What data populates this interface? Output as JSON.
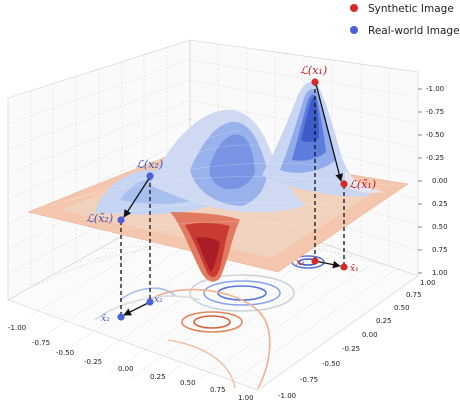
{
  "legend": {
    "items": [
      {
        "label": "Synthetic Image",
        "color": "#d42a2a"
      },
      {
        "label": "Real-world Image",
        "color": "#4a62d8"
      }
    ]
  },
  "chart_data": {
    "type": "surface3d",
    "z_axis_inverted": true,
    "xlim": [
      -1.0,
      1.0
    ],
    "ylim": [
      -1.0,
      1.0
    ],
    "zlim": [
      -1.0,
      1.0
    ],
    "x_ticks": [
      "-1.00",
      "-0.75",
      "-0.50",
      "-0.25",
      "0.00",
      "0.25",
      "0.50",
      "0.75",
      "1.00"
    ],
    "y_ticks": [
      "-1.00",
      "-0.75",
      "-0.50",
      "-0.25",
      "0.00",
      "0.25",
      "0.50",
      "0.75",
      "1.00"
    ],
    "z_ticks": [
      "-1.00",
      "-0.75",
      "-0.50",
      "-0.25",
      "0.00",
      "0.25",
      "0.50",
      "0.75",
      "1.00"
    ],
    "colormap": "coolwarm",
    "points": {
      "L_x1": "ℒ(x₁)",
      "L_x1_tilde": "ℒ(x̃₁)",
      "L_x2": "ℒ(x₂)",
      "L_x2_tilde": "ℒ(x̃₂)",
      "x1": "x₁",
      "x1_tilde": "x̃₁",
      "x2": "x₂",
      "x2_tilde": "x̃₂"
    },
    "grid": true,
    "legend_position": "top-right"
  }
}
